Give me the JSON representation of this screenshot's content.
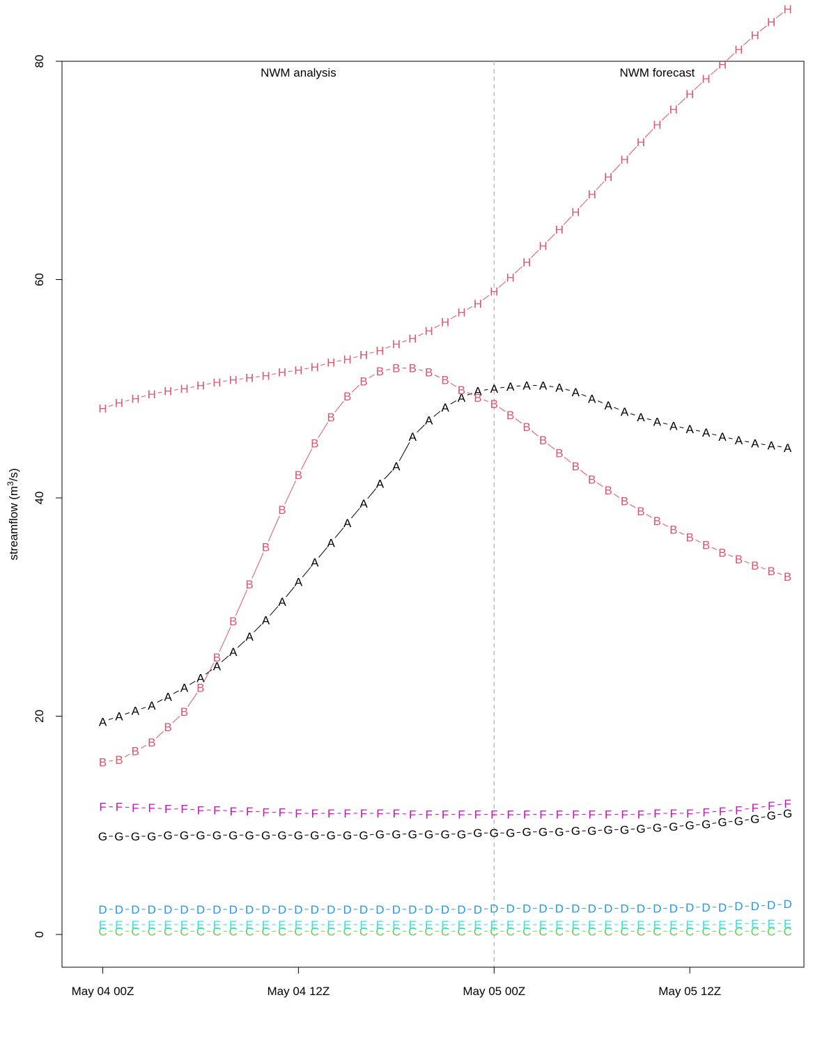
{
  "chart_data": {
    "type": "line",
    "title": "",
    "xlabel": "",
    "ylabel": "streamflow (m",
    "ylabel_sup": "3",
    "ylabel_suffix": "/s)",
    "ylim": [
      -3,
      80
    ],
    "xlim_hours": [
      -2.5,
      43
    ],
    "x_ticks": [
      {
        "hour": 0,
        "label": "May 04 00Z"
      },
      {
        "hour": 12,
        "label": "May 04 12Z"
      },
      {
        "hour": 24,
        "label": "May 05 00Z"
      },
      {
        "hour": 36,
        "label": "May 05 12Z"
      }
    ],
    "y_ticks": [
      0,
      20,
      40,
      60,
      80
    ],
    "divider_hour": 24,
    "panel_labels": [
      {
        "text": "NWM analysis",
        "hour": 12
      },
      {
        "text": "NWM forecast",
        "hour": 34
      }
    ],
    "x_hours": [
      0,
      1,
      2,
      3,
      4,
      5,
      6,
      7,
      8,
      9,
      10,
      11,
      12,
      13,
      14,
      15,
      16,
      17,
      18,
      19,
      20,
      21,
      22,
      23,
      24,
      25,
      26,
      27,
      28,
      29,
      30,
      31,
      32,
      33,
      34,
      35,
      36,
      37,
      38,
      39,
      40,
      41,
      42
    ],
    "series": [
      {
        "name": "A",
        "color": "#000000",
        "values": [
          19.5,
          20,
          20.5,
          21,
          21.8,
          22.6,
          23.5,
          24.6,
          25.9,
          27.3,
          28.8,
          30.5,
          32.3,
          34.1,
          35.9,
          37.7,
          39.5,
          41.3,
          42.9,
          45.6,
          47.1,
          48.3,
          49.2,
          49.8,
          50,
          50.2,
          50.3,
          50.3,
          50.1,
          49.7,
          49.1,
          48.5,
          47.9,
          47.4,
          47,
          46.6,
          46.3,
          46,
          45.6,
          45.3,
          45,
          44.8,
          44.6
        ]
      },
      {
        "name": "B",
        "color": "#df536b",
        "values": [
          15.8,
          16,
          16.8,
          17.6,
          19,
          20.4,
          22.6,
          25.4,
          28.7,
          32.1,
          35.5,
          38.9,
          42.1,
          45,
          47.4,
          49.3,
          50.7,
          51.6,
          51.9,
          51.9,
          51.5,
          50.8,
          49.9,
          49.2,
          48.6,
          47.6,
          46.5,
          45.3,
          44.1,
          42.9,
          41.7,
          40.7,
          39.7,
          38.8,
          37.9,
          37.1,
          36.4,
          35.7,
          35,
          34.4,
          33.8,
          33.3,
          32.8
        ]
      },
      {
        "name": "C",
        "color": "#61d04f",
        "values": [
          0.3,
          0.3,
          0.3,
          0.3,
          0.3,
          0.3,
          0.3,
          0.3,
          0.3,
          0.3,
          0.3,
          0.3,
          0.3,
          0.3,
          0.3,
          0.3,
          0.3,
          0.3,
          0.3,
          0.3,
          0.3,
          0.3,
          0.3,
          0.3,
          0.3,
          0.3,
          0.3,
          0.3,
          0.3,
          0.3,
          0.3,
          0.3,
          0.3,
          0.3,
          0.3,
          0.3,
          0.3,
          0.3,
          0.3,
          0.3,
          0.3,
          0.3,
          0.3
        ]
      },
      {
        "name": "D",
        "color": "#2297e6",
        "values": [
          2.3,
          2.3,
          2.3,
          2.3,
          2.3,
          2.3,
          2.3,
          2.3,
          2.3,
          2.3,
          2.3,
          2.3,
          2.3,
          2.3,
          2.3,
          2.3,
          2.3,
          2.3,
          2.3,
          2.3,
          2.3,
          2.3,
          2.3,
          2.3,
          2.4,
          2.4,
          2.4,
          2.4,
          2.4,
          2.4,
          2.4,
          2.4,
          2.4,
          2.4,
          2.4,
          2.4,
          2.5,
          2.5,
          2.5,
          2.6,
          2.6,
          2.7,
          2.8
        ]
      },
      {
        "name": "E",
        "color": "#28e2e5",
        "values": [
          0.9,
          0.9,
          0.9,
          0.9,
          0.9,
          0.9,
          0.9,
          0.9,
          0.9,
          0.9,
          0.9,
          0.9,
          0.9,
          0.9,
          0.9,
          0.9,
          0.9,
          0.9,
          0.9,
          0.9,
          0.9,
          0.9,
          0.9,
          0.9,
          0.9,
          0.9,
          0.9,
          0.9,
          0.9,
          0.9,
          0.9,
          0.9,
          0.9,
          0.9,
          0.9,
          0.9,
          0.9,
          0.9,
          0.9,
          1,
          1,
          1,
          1
        ]
      },
      {
        "name": "F",
        "color": "#cd0bbc",
        "values": [
          11.7,
          11.7,
          11.6,
          11.6,
          11.5,
          11.5,
          11.4,
          11.4,
          11.3,
          11.3,
          11.2,
          11.2,
          11.1,
          11.1,
          11.1,
          11.1,
          11.1,
          11.1,
          11.1,
          11,
          11,
          11,
          11,
          11,
          11,
          11,
          11,
          11,
          11,
          11,
          11,
          11,
          11,
          11,
          11.1,
          11.1,
          11.1,
          11.2,
          11.3,
          11.4,
          11.6,
          11.8,
          12
        ]
      },
      {
        "name": "G",
        "color": "#000000",
        "values": [
          9,
          9,
          9,
          9,
          9.1,
          9.1,
          9.1,
          9.1,
          9.1,
          9.1,
          9.1,
          9.1,
          9.1,
          9.1,
          9.1,
          9.1,
          9.1,
          9.2,
          9.2,
          9.2,
          9.2,
          9.2,
          9.2,
          9.3,
          9.3,
          9.3,
          9.4,
          9.4,
          9.4,
          9.5,
          9.5,
          9.6,
          9.6,
          9.7,
          9.8,
          9.9,
          10,
          10.1,
          10.3,
          10.4,
          10.6,
          10.9,
          11.1
        ]
      },
      {
        "name": "H",
        "color": "#df536b",
        "values": [
          48.2,
          48.7,
          49.1,
          49.5,
          49.8,
          50,
          50.3,
          50.6,
          50.8,
          51,
          51.2,
          51.5,
          51.7,
          52,
          52.4,
          52.7,
          53.1,
          53.5,
          54.1,
          54.6,
          55.3,
          56.1,
          57,
          57.8,
          58.9,
          60.2,
          61.6,
          63.1,
          64.6,
          66.2,
          67.8,
          69.4,
          71,
          72.6,
          74.2,
          75.6,
          77,
          78.4,
          79.7,
          81.1,
          82.4,
          83.6,
          84.8
        ]
      }
    ]
  }
}
